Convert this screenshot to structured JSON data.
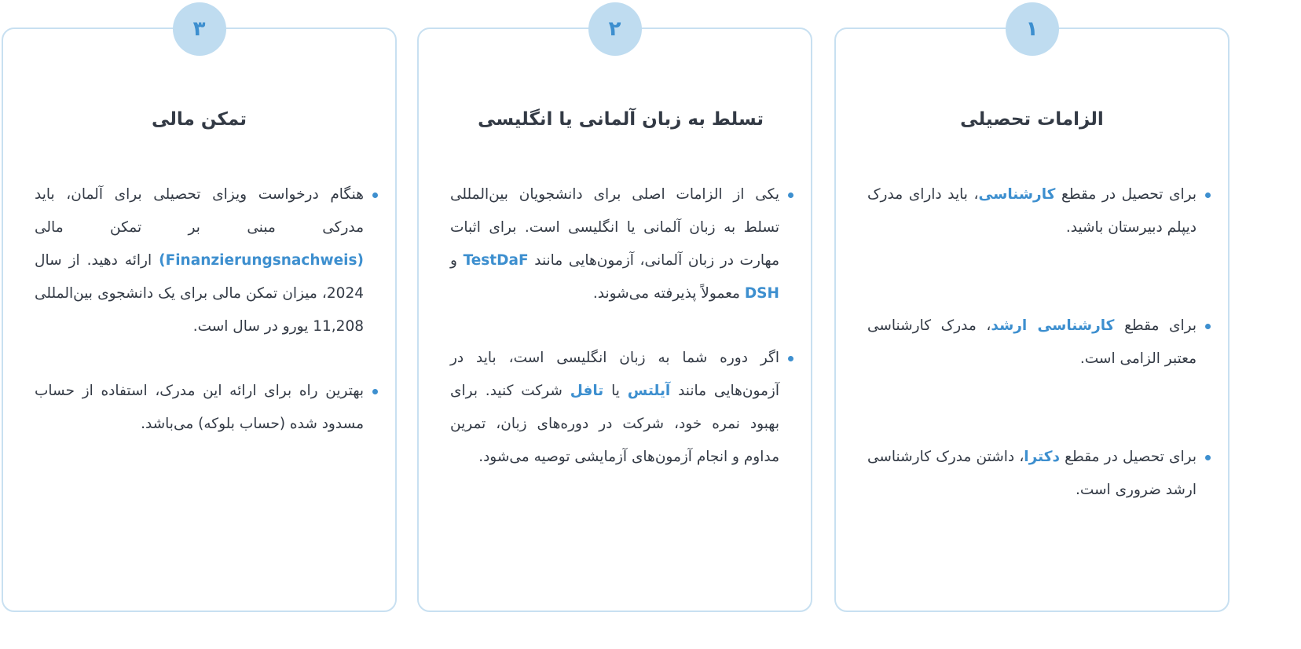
{
  "colors": {
    "accent": "#3d8fcf",
    "border": "#c8e0f1",
    "badge_bg": "#bfdcf0",
    "text": "#333a45"
  },
  "cards": [
    {
      "number": "۱",
      "title": "الزامات تحصیلی",
      "items": [
        [
          {
            "t": "برای تحصیل در مقطع "
          },
          {
            "t": "کارشناسی",
            "hl": true
          },
          {
            "t": "، باید دارای مدرک دیپلم دبیرستان باشید."
          }
        ],
        [
          {
            "t": "برای مقطع "
          },
          {
            "t": "کارشناسی ارشد",
            "hl": true
          },
          {
            "t": "، مدرک کارشناسی معتبر الزامی است."
          }
        ],
        [
          {
            "t": "برای تحصیل در مقطع "
          },
          {
            "t": "دکترا",
            "hl": true
          },
          {
            "t": "، داشتن مدرک کارشناسی ارشد ضروری است."
          }
        ]
      ]
    },
    {
      "number": "۲",
      "title": "تسلط به زبان آلمانی یا انگلیسی",
      "items": [
        [
          {
            "t": "یکی از الزامات اصلی برای دانشجویان بین‌المللی تسلط به زبان آلمانی یا انگلیسی است. برای اثبات مهارت در زبان آلمانی، آزمون‌هایی مانند "
          },
          {
            "t": "TestDaF",
            "hl": true
          },
          {
            "t": " و "
          },
          {
            "t": "DSH",
            "hl": true
          },
          {
            "t": " معمولاً پذیرفته می‌شوند."
          }
        ],
        [
          {
            "t": "اگر دوره شما به زبان انگلیسی است، باید در آزمون‌هایی مانند "
          },
          {
            "t": "آیلتس",
            "hl": true
          },
          {
            "t": " یا "
          },
          {
            "t": "تافل",
            "hl": true
          },
          {
            "t": " شرکت کنید. برای بهبود نمره خود، شرکت در دوره‌های زبان، تمرین مداوم و انجام آزمون‌های آزمایشی توصیه می‌شود."
          }
        ]
      ]
    },
    {
      "number": "۳",
      "title": "تمکن مالی",
      "items": [
        [
          {
            "t": "هنگام درخواست ویزای تحصیلی برای آلمان، باید مدرکی مبنی بر تمکن مالی "
          },
          {
            "t": "(Finanzierungsnachweis)",
            "hl": true
          },
          {
            "t": " ارائه دهید. از سال 2024، میزان تمکن مالی برای یک دانشجوی بین‌المللی 11,208 یورو در سال است."
          }
        ],
        [
          {
            "t": "بهترین راه برای ارائه این مدرک، استفاده از حساب مسدود شده (حساب بلوکه) می‌باشد."
          }
        ]
      ]
    }
  ]
}
